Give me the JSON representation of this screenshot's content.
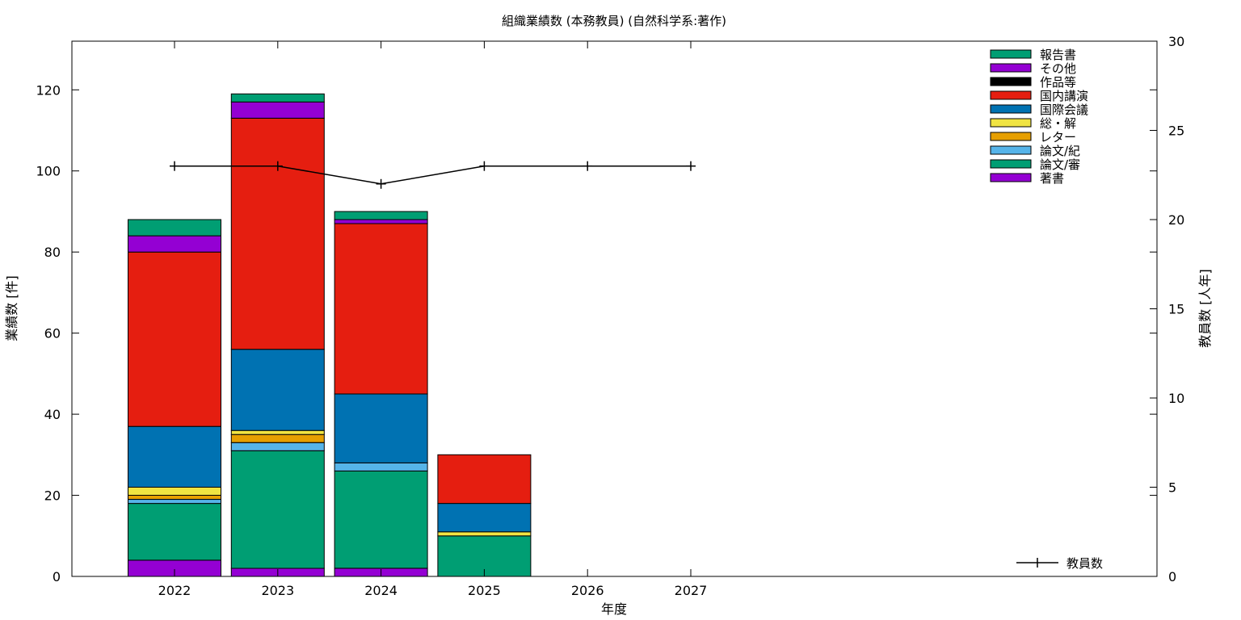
{
  "chart_data": {
    "type": "bar",
    "title": "組織業績数 (本務教員) (自然科学系:著作)",
    "xlabel": "年度",
    "ylabel": "業績数 [件]",
    "y2label": "教員数 [人年]",
    "categories": [
      "2022",
      "2023",
      "2024",
      "2025",
      "2026",
      "2027"
    ],
    "ylim": [
      0,
      132
    ],
    "yticks": [
      0,
      20,
      40,
      60,
      80,
      100,
      120
    ],
    "y2lim": [
      0,
      30
    ],
    "y2ticks": [
      0,
      5,
      10,
      15,
      20,
      25,
      30
    ],
    "grid": false,
    "legend_position": "top-right",
    "stacked": true,
    "series": [
      {
        "name": "著書",
        "color": "#9400d3",
        "values": [
          4,
          2,
          2,
          0,
          0,
          0
        ]
      },
      {
        "name": "論文/審",
        "color": "#009e73",
        "values": [
          14,
          29,
          24,
          10,
          0,
          0
        ]
      },
      {
        "name": "論文/紀",
        "color": "#56b4e9",
        "values": [
          1,
          2,
          2,
          0,
          0,
          0
        ]
      },
      {
        "name": "レター",
        "color": "#e69f00",
        "values": [
          1,
          2,
          0,
          0,
          0,
          0
        ]
      },
      {
        "name": "総・解",
        "color": "#f0e442",
        "values": [
          2,
          1,
          0,
          1,
          0,
          0
        ]
      },
      {
        "name": "国際会議",
        "color": "#0072b2",
        "values": [
          15,
          20,
          17,
          7,
          0,
          0
        ]
      },
      {
        "name": "国内講演",
        "color": "#e51e10",
        "values": [
          43,
          57,
          42,
          12,
          0,
          0
        ]
      },
      {
        "name": "作品等",
        "color": "#000000",
        "values": [
          0,
          0,
          0,
          0,
          0,
          0
        ]
      },
      {
        "name": "その他",
        "color": "#9400d3",
        "values": [
          4,
          4,
          1,
          0,
          0,
          0
        ]
      },
      {
        "name": "報告書",
        "color": "#009e73",
        "values": [
          4,
          2,
          2,
          0,
          0,
          0
        ]
      }
    ],
    "line_series": {
      "name": "教員数",
      "color": "#000000",
      "axis": "y2",
      "values": [
        23,
        23,
        22,
        23,
        23,
        23
      ]
    }
  }
}
